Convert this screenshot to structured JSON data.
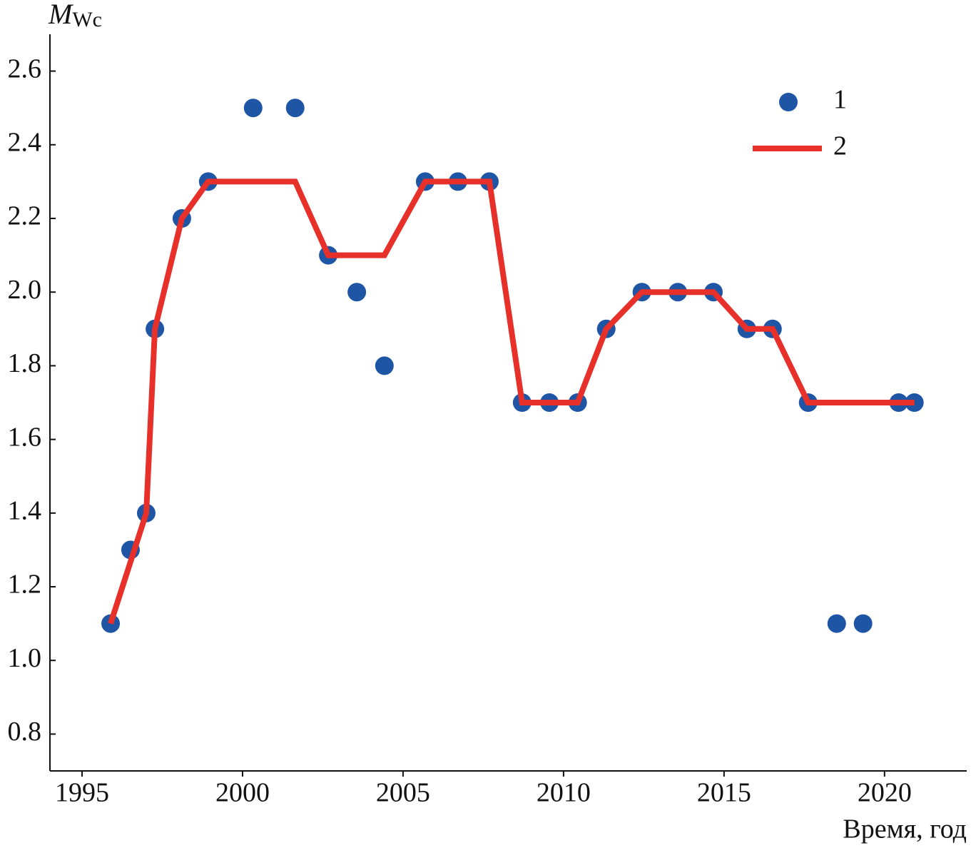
{
  "chart_data": {
    "type": "scatter-line",
    "y_label": {
      "main": "M",
      "sub": "Wc"
    },
    "x_label": "Время, год",
    "xlim": [
      1994,
      2022.56
    ],
    "ylim": [
      0.7,
      2.7
    ],
    "xticks": [
      1995,
      2000,
      2005,
      2010,
      2015,
      2020
    ],
    "yticks": [
      0.8,
      {
        "value": 1,
        "label": "1.0"
      },
      1.2,
      1.4,
      1.6,
      1.8,
      {
        "value": 2,
        "label": "2.0"
      },
      2.2,
      2.4,
      2.6
    ],
    "legend": "top-right",
    "series": [
      {
        "name": "1",
        "kind": "scatter",
        "color": "#1f55a5",
        "x": [
          1995.89,
          1996.51,
          1997.0,
          1997.27,
          1998.11,
          1998.93,
          2000.33,
          2001.64,
          2002.67,
          2003.56,
          2004.42,
          2005.69,
          2006.71,
          2007.69,
          2008.71,
          2009.56,
          2010.44,
          2011.33,
          2012.44,
          2013.56,
          2014.67,
          2015.71,
          2016.51,
          2017.62,
          2018.51,
          2019.33,
          2020.44,
          2020.93
        ],
        "values": [
          1.1,
          1.3,
          1.4,
          1.9,
          2.2,
          2.3,
          2.5,
          2.5,
          2.1,
          2.0,
          1.8,
          2.3,
          2.3,
          2.3,
          1.7,
          1.7,
          1.7,
          1.9,
          2.0,
          2.0,
          2.0,
          1.9,
          1.9,
          1.7,
          1.1,
          1.1,
          1.7,
          1.7
        ]
      },
      {
        "name": "2",
        "kind": "line",
        "color": "#e8302a",
        "x": [
          1995.89,
          1997.0,
          1997.27,
          1998.11,
          1998.93,
          2001.64,
          2002.67,
          2004.42,
          2005.69,
          2007.69,
          2008.71,
          2010.44,
          2011.33,
          2012.44,
          2014.67,
          2015.71,
          2016.51,
          2017.62,
          2020.93
        ],
        "values": [
          1.1,
          1.4,
          1.9,
          2.2,
          2.3,
          2.3,
          2.1,
          2.1,
          2.3,
          2.3,
          1.7,
          1.7,
          1.9,
          2.0,
          2.0,
          1.9,
          1.9,
          1.7,
          1.7
        ]
      }
    ]
  }
}
